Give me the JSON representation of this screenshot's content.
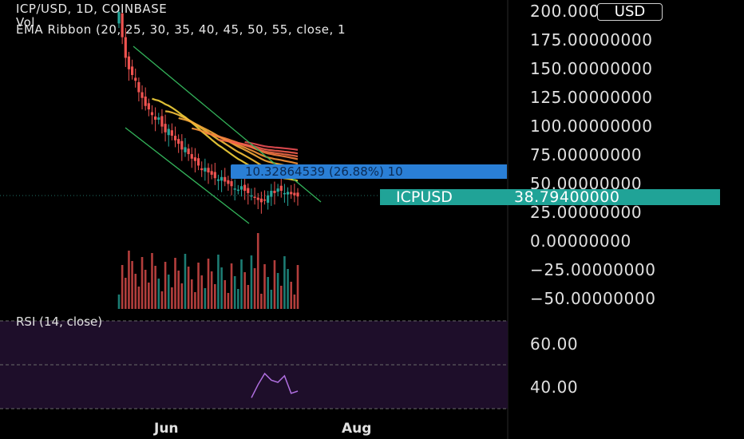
{
  "legend": {
    "symbol_line": "ICP/USD, 1D, COINBASE",
    "vol_line": "Vol",
    "ema_line": "EMA Ribbon (20, 25, 30, 35, 40, 45, 50, 55, close, 1"
  },
  "currency_button": "USD",
  "price_axis": [
    "200.00000000",
    "175.00000000",
    "150.00000000",
    "125.00000000",
    "100.00000000",
    "75.00000000",
    "50.00000000",
    "25.00000000",
    "0.00000000",
    "−25.00000000",
    "−50.00000000"
  ],
  "rsi_axis": [
    "60.00",
    "40.00"
  ],
  "rsi_label": "RSI (14, close)",
  "x_axis": [
    "Jun",
    "Aug"
  ],
  "price_tag": {
    "symbol": "ICPUSD",
    "value": "38.79400000"
  },
  "measure_label": "10.32864539 (26.88%) 10",
  "colors": {
    "up": "#26a69a",
    "down": "#ef5350",
    "price_tag": "#20a397",
    "measure": "#2a7fd6",
    "rsi_band": "#1e0e2a",
    "rsi_line": "#b06fe0",
    "channel": "#33b35a"
  },
  "chart_data": {
    "type": "candlestick",
    "title": "ICP/USD, 1D, COINBASE",
    "y_unit": "USD",
    "ylim": [
      -50,
      200
    ],
    "last_price": 38.794,
    "ema_ribbon_periods": [
      20,
      25,
      30,
      35,
      40,
      45,
      50,
      55
    ],
    "measure": {
      "change": 10.32864539,
      "percent": 26.88
    },
    "rsi": {
      "period": 14,
      "levels": [
        30,
        50,
        70
      ],
      "recent_values": [
        35,
        41,
        46,
        43,
        42,
        45,
        37,
        38
      ]
    },
    "close_series": [
      200,
      178,
      160,
      150,
      145,
      140,
      130,
      125,
      118,
      115,
      110,
      106,
      108,
      100,
      95,
      98,
      92,
      88,
      85,
      80,
      82,
      76,
      72,
      70,
      66,
      62,
      64,
      60,
      58,
      55,
      54,
      56,
      52,
      50,
      48,
      46,
      45,
      48,
      44,
      42,
      40,
      38,
      36,
      34,
      36,
      40,
      44,
      42,
      46,
      44,
      42,
      43,
      41,
      40,
      39
    ]
  }
}
